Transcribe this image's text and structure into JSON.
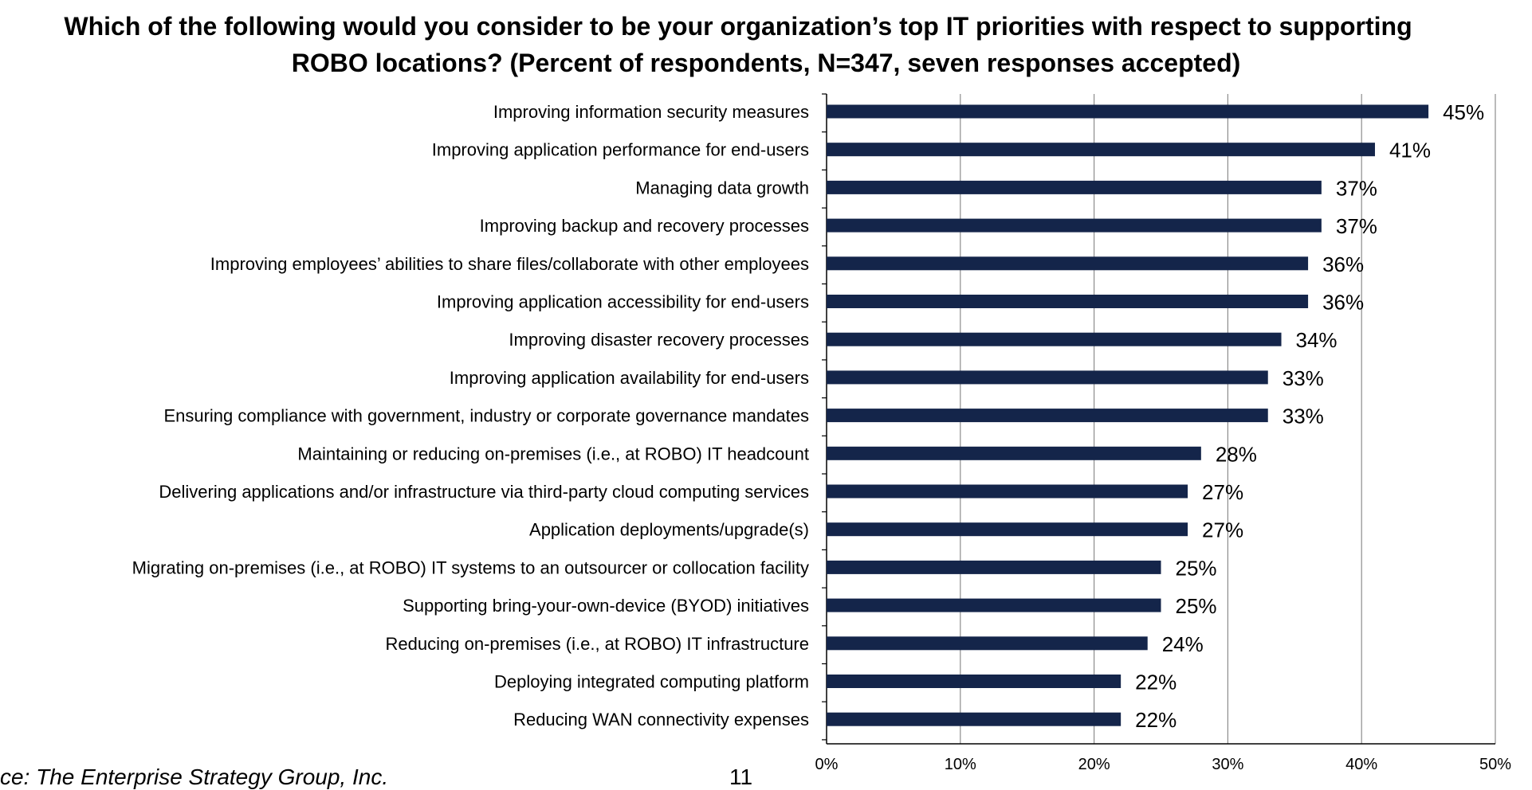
{
  "chart_data": {
    "type": "bar",
    "orientation": "horizontal",
    "title_lines": [
      "Which of the following would you consider to be your organization’s top IT priorities with respect to supporting",
      "ROBO locations?  (Percent of respondents, N=347, seven responses accepted)"
    ],
    "categories": [
      "Improving information security measures",
      "Improving application performance for end-users",
      "Managing data growth",
      "Improving backup and recovery processes",
      "Improving employees’ abilities to share files/collaborate with other employees",
      "Improving application accessibility for end-users",
      "Improving disaster recovery processes",
      "Improving application availability for end-users",
      "Ensuring compliance with government, industry or corporate governance mandates",
      "Maintaining or reducing on-premises (i.e., at ROBO) IT headcount",
      "Delivering applications and/or infrastructure via third-party cloud computing services",
      "Application deployments/upgrade(s)",
      "Migrating on-premises (i.e., at ROBO) IT systems to an outsourcer or collocation facility",
      "Supporting bring-your-own-device (BYOD) initiatives",
      "Reducing on-premises (i.e., at ROBO) IT infrastructure",
      "Deploying integrated computing platform",
      "Reducing WAN connectivity expenses"
    ],
    "values": [
      45,
      41,
      37,
      37,
      36,
      36,
      34,
      33,
      33,
      28,
      27,
      27,
      25,
      25,
      24,
      22,
      22
    ],
    "value_labels": [
      "45%",
      "41%",
      "37%",
      "37%",
      "36%",
      "36%",
      "34%",
      "33%",
      "33%",
      "28%",
      "27%",
      "27%",
      "25%",
      "25%",
      "24%",
      "22%",
      "22%"
    ],
    "x_ticks": [
      0,
      10,
      20,
      30,
      40,
      50
    ],
    "x_tick_labels": [
      "0%",
      "10%",
      "20%",
      "30%",
      "40%",
      "50%"
    ],
    "xlim": [
      0,
      50
    ],
    "grid": "vertical",
    "bar_color": "#14254a"
  },
  "footer": {
    "source": "ce: The Enterprise Strategy Group, Inc.",
    "page": "11"
  }
}
